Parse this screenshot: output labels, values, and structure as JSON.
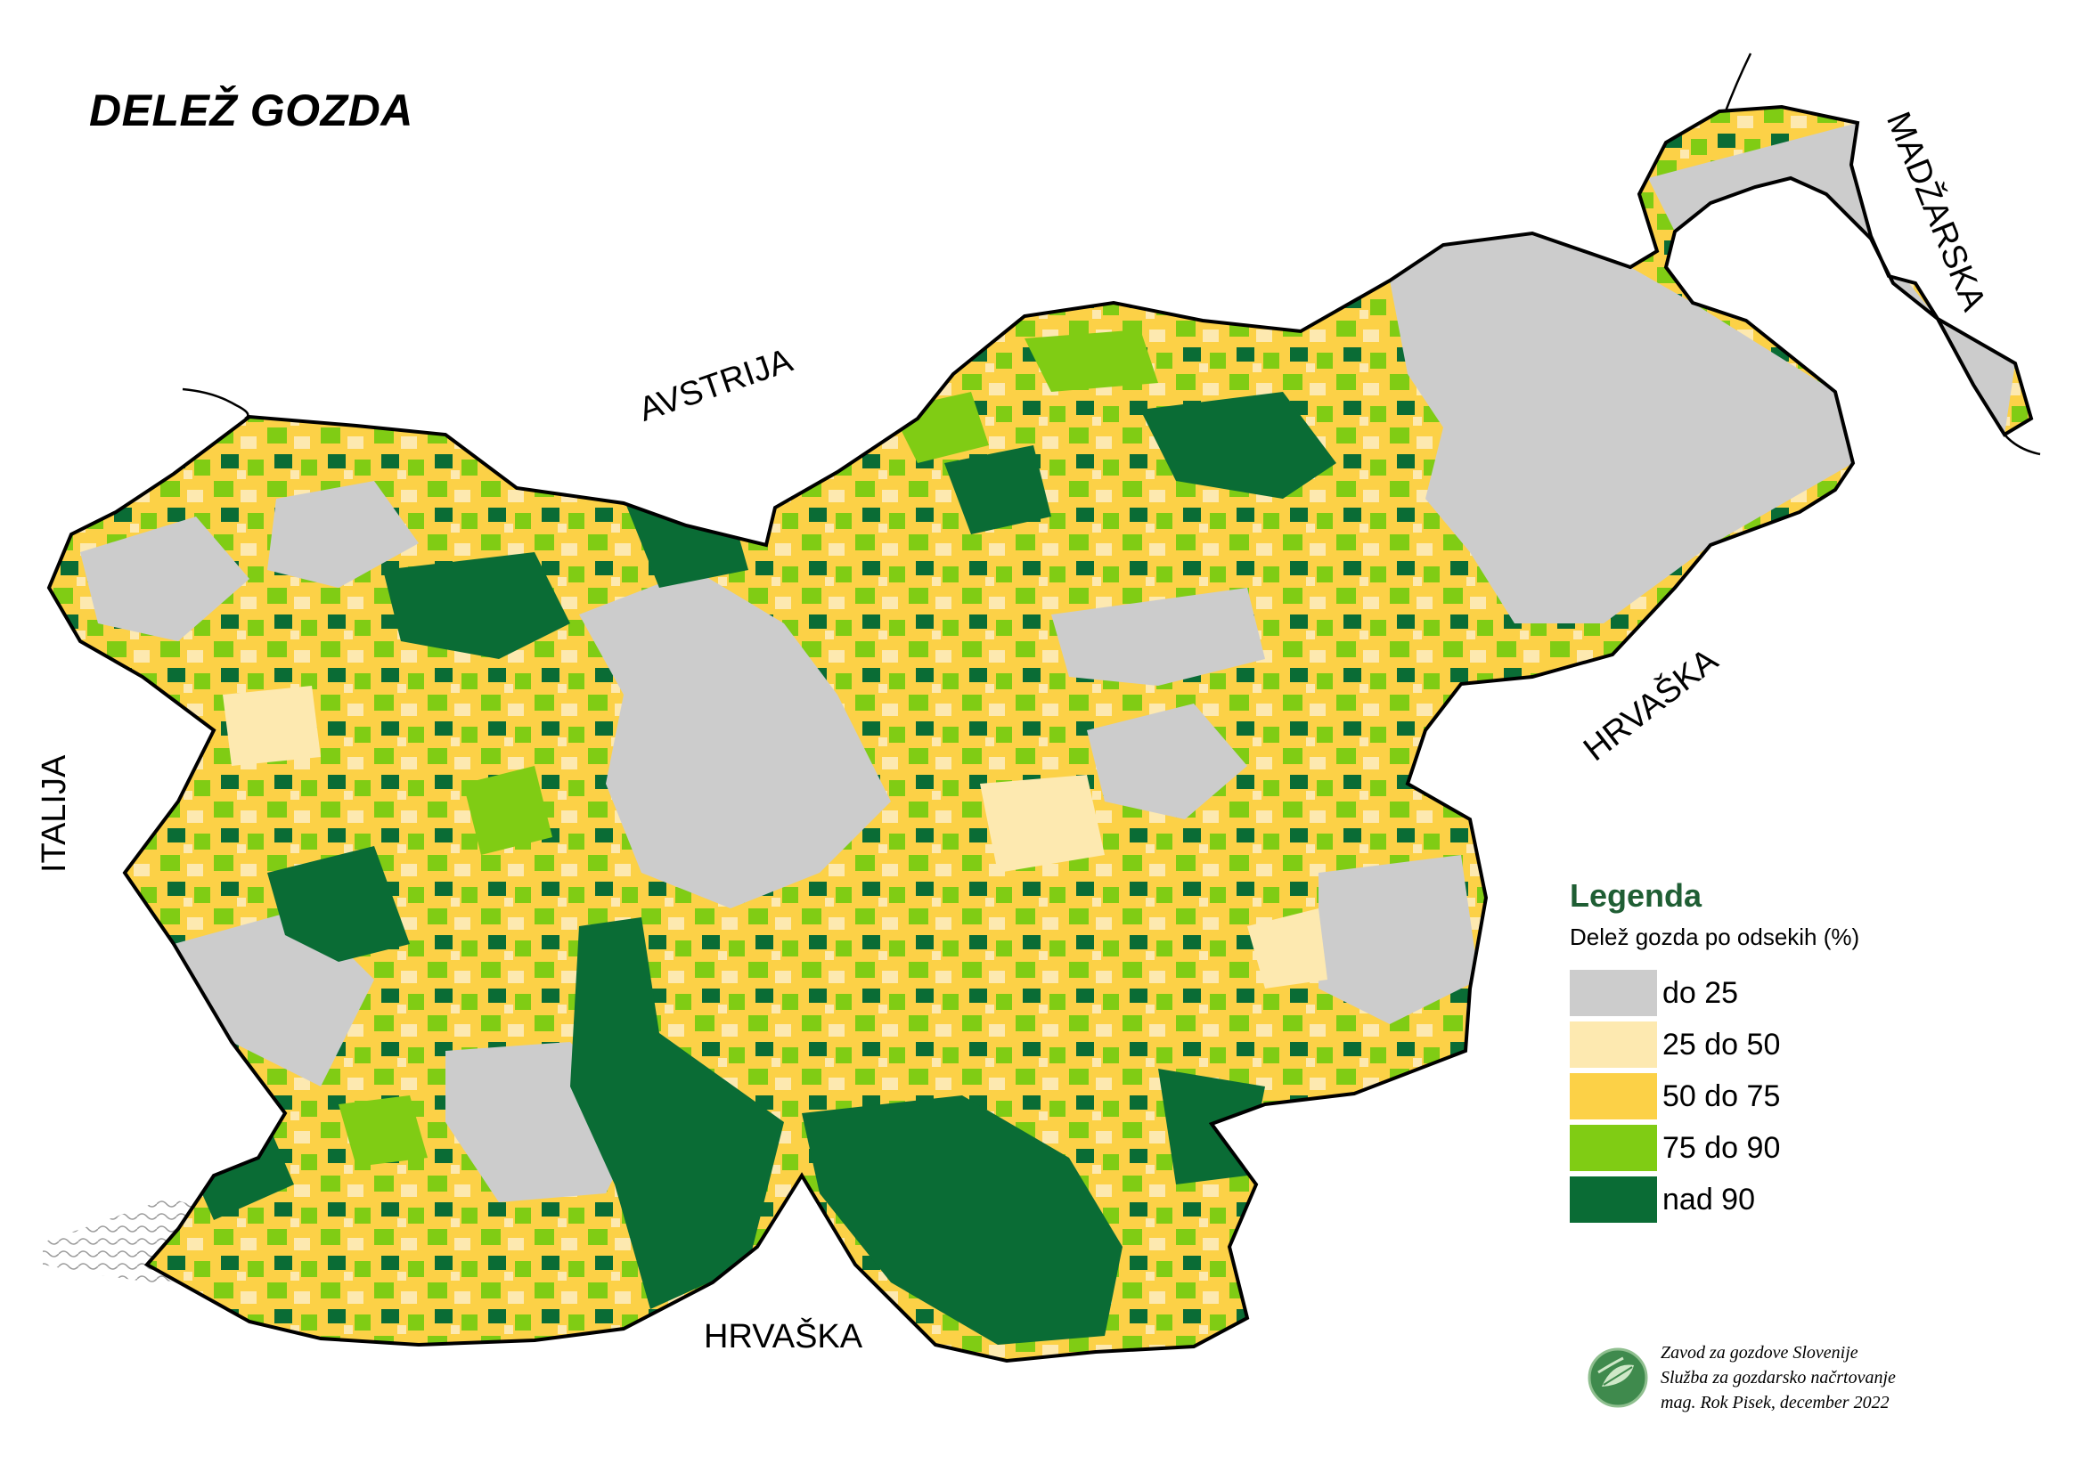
{
  "title": "DELEŽ GOZDA",
  "countries": {
    "austria": "AVSTRIJA",
    "hungary": "MADŽARSKA",
    "croatia_east": "HRVAŠKA",
    "croatia_south": "HRVAŠKA",
    "italy": "ITALIJA"
  },
  "legend": {
    "title": "Legenda",
    "subtitle": "Delež gozda po odsekih (%)",
    "items": [
      {
        "label": "do 25",
        "color": "#cccccc"
      },
      {
        "label": "25 do 50",
        "color": "#fde9b0"
      },
      {
        "label": "50 do 75",
        "color": "#fcd147"
      },
      {
        "label": "75 do 90",
        "color": "#80cc14"
      },
      {
        "label": "nad 90",
        "color": "#0a6c35"
      }
    ]
  },
  "credits": {
    "line1": "Zavod za gozdove Slovenije",
    "line2": "Služba za gozdarsko načrtovanje",
    "line3": "mag. Rok Pisek, december 2022"
  },
  "logo_icon": "leaf-globe-icon"
}
